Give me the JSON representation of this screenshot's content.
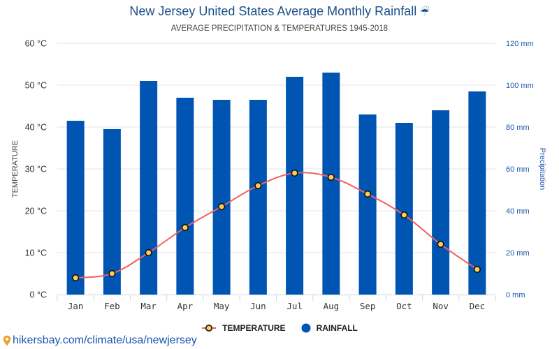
{
  "header": {
    "title": "New Jersey United States Average Monthly Rainfall",
    "title_icon": "☔",
    "subtitle": "AVERAGE PRECIPITATION & TEMPERATURES 1945-2018"
  },
  "footer": {
    "icon": "location-pin-icon",
    "link_text": "hikersbay.com/climate/usa/newjersey"
  },
  "colors": {
    "rainfall_bar": "#0055b3",
    "temperature_line": "#f06060",
    "temperature_marker_fill": "#ffcc55",
    "temperature_marker_stroke": "#111111",
    "right_axis": "#1a56b0",
    "title": "#1b4f8a"
  },
  "chart_data": {
    "type": "bar+line",
    "title": "New Jersey United States Average Monthly Rainfall",
    "subtitle": "AVERAGE PRECIPITATION & TEMPERATURES 1945-2018",
    "categories": [
      "Jan",
      "Feb",
      "Mar",
      "Apr",
      "May",
      "Jun",
      "Jul",
      "Aug",
      "Sep",
      "Oct",
      "Nov",
      "Dec"
    ],
    "series": [
      {
        "name": "RAINFALL",
        "type": "bar",
        "axis": "right",
        "unit": "mm",
        "values": [
          83,
          79,
          102,
          94,
          93,
          93,
          104,
          106,
          86,
          82,
          88,
          97
        ]
      },
      {
        "name": "TEMPERATURE",
        "type": "line",
        "axis": "left",
        "unit": "°C",
        "values": [
          4,
          5,
          10,
          16,
          21,
          26,
          29,
          28,
          24,
          19,
          12,
          6
        ]
      }
    ],
    "y_left": {
      "label": "TEMPERATURE",
      "range": [
        0,
        60
      ],
      "ticks": [
        0,
        10,
        20,
        30,
        40,
        50,
        60
      ],
      "tick_labels": [
        "0 °C",
        "10 °C",
        "20 °C",
        "30 °C",
        "40 °C",
        "50 °C",
        "60 °C"
      ]
    },
    "y_right": {
      "label": "Precipitation",
      "range": [
        0,
        120
      ],
      "ticks": [
        0,
        20,
        40,
        60,
        80,
        100,
        120
      ],
      "tick_labels": [
        "0 mm",
        "20 mm",
        "40 mm",
        "60 mm",
        "80 mm",
        "100 mm",
        "120 mm"
      ]
    },
    "grid": true,
    "legend": {
      "position": "bottom-center",
      "entries": [
        "TEMPERATURE",
        "RAINFALL"
      ]
    }
  }
}
